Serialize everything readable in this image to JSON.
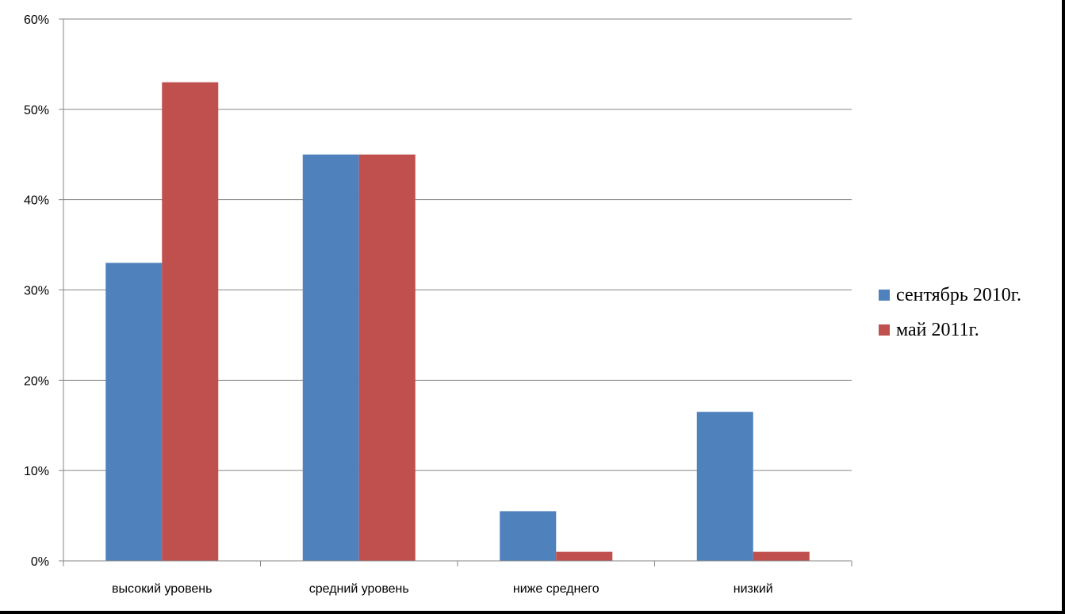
{
  "chart_data": {
    "type": "bar",
    "categories": [
      "высокий уровень",
      "средний уровень",
      "ниже среднего",
      "низкий"
    ],
    "series": [
      {
        "name": "сентябрь 2010г.",
        "color": "#4F81BD",
        "values": [
          33,
          45,
          5.5,
          16.5
        ]
      },
      {
        "name": "май 2011г.",
        "color": "#C0504D",
        "values": [
          53,
          45,
          1,
          1
        ]
      }
    ],
    "yticks": [
      "0%",
      "10%",
      "20%",
      "30%",
      "40%",
      "50%",
      "60%"
    ],
    "ylim": [
      0,
      60
    ],
    "grid": true,
    "legend_position": "right"
  }
}
